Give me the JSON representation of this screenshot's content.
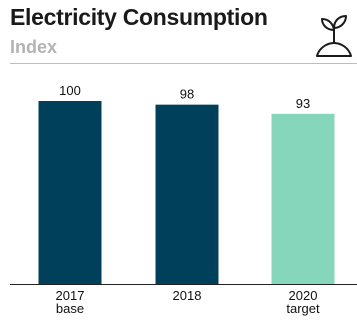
{
  "header": {
    "title": "Electricity Consumption",
    "subtitle": "Index",
    "icon": "plant-sprout-icon"
  },
  "colors": {
    "primary_bar": "#00405a",
    "target_bar": "#86d6bc",
    "baseline": "#222222"
  },
  "chart_data": {
    "type": "bar",
    "title": "Electricity Consumption",
    "subtitle": "Index",
    "categories": [
      "2017",
      "2018",
      "2020"
    ],
    "category_sublabels": [
      "base",
      "",
      "target"
    ],
    "values": [
      100,
      98,
      93
    ],
    "bar_colors": [
      "#00405a",
      "#00405a",
      "#86d6bc"
    ],
    "ylim": [
      0,
      100
    ],
    "grid": false,
    "xlabel": "",
    "ylabel": ""
  }
}
